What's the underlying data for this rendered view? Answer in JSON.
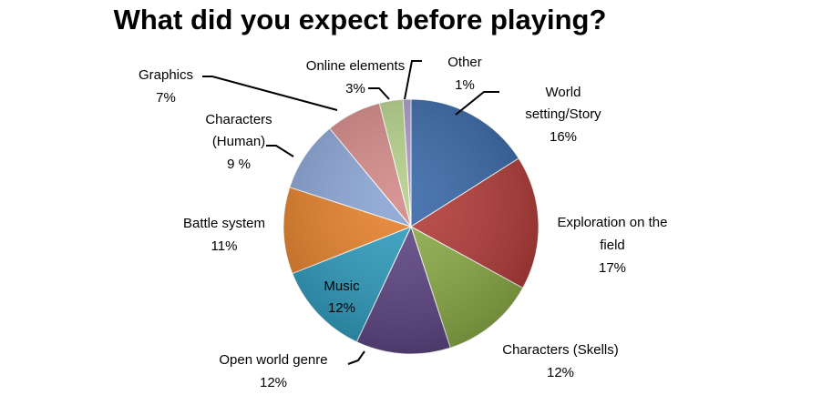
{
  "chart_data": {
    "type": "pie",
    "title": "What did you expect before playing?",
    "slices": [
      {
        "label": [
          "World",
          "setting/Story"
        ],
        "pct_text": "16%",
        "value": 16,
        "color": "#3566a6"
      },
      {
        "label": [
          "Exploration on the",
          "field"
        ],
        "pct_text": "17%",
        "value": 17,
        "color": "#b33a37"
      },
      {
        "label": [
          "Characters (Skells)"
        ],
        "pct_text": "12%",
        "value": 12,
        "color": "#8aac45"
      },
      {
        "label": [
          "Open world genre"
        ],
        "pct_text": "12%",
        "value": 12,
        "color": "#5c4382"
      },
      {
        "label": [
          "Music"
        ],
        "pct_text": "12%",
        "value": 12,
        "color": "#2c9bbd"
      },
      {
        "label": [
          "Battle system"
        ],
        "pct_text": "11%",
        "value": 11,
        "color": "#e57f28"
      },
      {
        "label": [
          "Characters",
          "(Human)"
        ],
        "pct_text": "9 %",
        "value": 9,
        "color": "#88a3d4"
      },
      {
        "label": [
          "Graphics"
        ],
        "pct_text": "7%",
        "value": 7,
        "color": "#d18784"
      },
      {
        "label": [
          "Online elements"
        ],
        "pct_text": "3%",
        "value": 3,
        "color": "#b3cf88"
      },
      {
        "label": [
          "Other"
        ],
        "pct_text": "1%",
        "value": 1,
        "color": "#a597c8"
      }
    ],
    "legend": "none",
    "start": "top, clockwise"
  }
}
